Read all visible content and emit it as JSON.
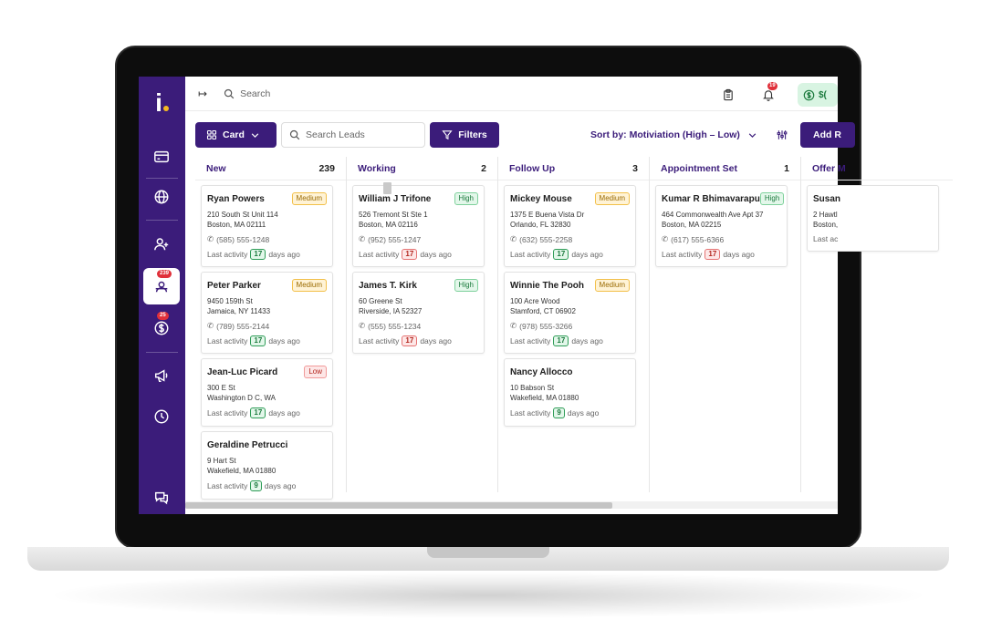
{
  "topbar": {
    "search_placeholder": "Search",
    "notification_count": "19",
    "balance_label": "$("
  },
  "sidebar": {
    "leads_badge": "239",
    "deals_badge": "25"
  },
  "toolbar": {
    "view_label": "Card",
    "lead_search_placeholder": "Search Leads",
    "filters_label": "Filters",
    "sort_label": "Sort by: Motiviation (High – Low)",
    "add_label": "Add R"
  },
  "columns": [
    {
      "title": "New",
      "count": "239",
      "cards": [
        {
          "name": "Ryan Powers",
          "priority": "Medium",
          "address1": "210 South St Unit 114",
          "address2": "Boston, MA 02111",
          "phone": "(585) 555-1248",
          "activity_prefix": "Last activity",
          "days": "17",
          "activity_suffix": "days ago"
        },
        {
          "name": "Peter Parker",
          "priority": "Medium",
          "address1": "9450 159th St",
          "address2": "Jamaica, NY 11433",
          "phone": "(789) 555-2144",
          "activity_prefix": "Last activity",
          "days": "17",
          "activity_suffix": "days ago"
        },
        {
          "name": "Jean-Luc Picard",
          "priority": "Low",
          "address1": "300 E St",
          "address2": "Washington D C, WA",
          "activity_prefix": "Last activity",
          "days": "17",
          "activity_suffix": "days ago"
        },
        {
          "name": "Geraldine Petrucci",
          "address1": "9 Hart St",
          "address2": "Wakefield, MA 01880",
          "activity_prefix": "Last activity",
          "days": "9",
          "activity_suffix": "days ago"
        }
      ]
    },
    {
      "title": "Working",
      "count": "2",
      "cards": [
        {
          "name": "William J Trifone",
          "priority": "High",
          "address1": "526 Tremont St Ste 1",
          "address2": "Boston, MA 02116",
          "phone": "(952) 555-1247",
          "activity_prefix": "Last activity",
          "days": "17",
          "activity_suffix": "days ago"
        },
        {
          "name": "James T. Kirk",
          "priority": "High",
          "address1": "60 Greene St",
          "address2": "Riverside, IA 52327",
          "phone": "(555) 555-1234",
          "activity_prefix": "Last activity",
          "days": "17",
          "activity_suffix": "days ago"
        }
      ]
    },
    {
      "title": "Follow Up",
      "count": "3",
      "cards": [
        {
          "name": "Mickey Mouse",
          "priority": "Medium",
          "address1": "1375 E Buena Vista Dr",
          "address2": "Orlando, FL 32830",
          "phone": "(632) 555-2258",
          "activity_prefix": "Last activity",
          "days": "17",
          "activity_suffix": "days ago"
        },
        {
          "name": "Winnie The Pooh",
          "priority": "Medium",
          "address1": "100 Acre Wood",
          "address2": "Stamford, CT 06902",
          "phone": "(978) 555-3266",
          "activity_prefix": "Last activity",
          "days": "17",
          "activity_suffix": "days ago"
        },
        {
          "name": "Nancy Allocco",
          "address1": "10 Babson St",
          "address2": "Wakefield, MA 01880",
          "activity_prefix": "Last activity",
          "days": "9",
          "activity_suffix": "days ago"
        }
      ]
    },
    {
      "title": "Appointment Set",
      "count": "1",
      "cards": [
        {
          "name": "Kumar R Bhimavarapu",
          "priority": "High",
          "address1": "464 Commonwealth Ave Apt 37",
          "address2": "Boston, MA 02215",
          "phone": "(617) 555-6366",
          "activity_prefix": "Last activity",
          "days": "17",
          "activity_suffix": "days ago"
        }
      ]
    },
    {
      "title": "Offer M",
      "count": "",
      "cards": [
        {
          "name": "Susan",
          "address1": "2 Hawtl",
          "address2": "Boston,",
          "activity_prefix": "Last ac"
        }
      ]
    }
  ],
  "colors": {
    "brand": "#3b1c7a",
    "accent_logo": "#f5b921",
    "badge": "#e0303a"
  }
}
